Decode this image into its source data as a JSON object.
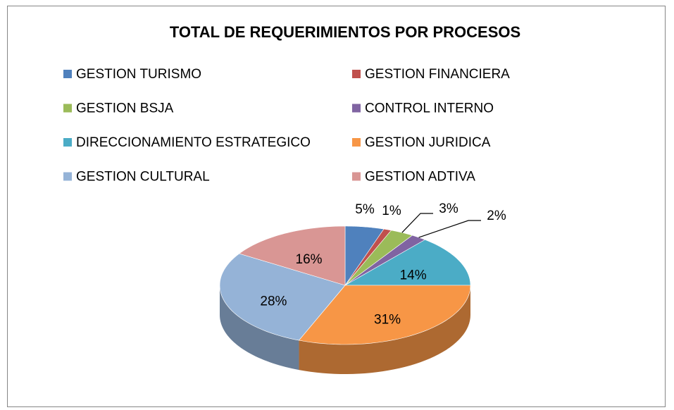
{
  "chart_data": {
    "type": "pie3d",
    "title": "TOTAL DE REQUERIMIENTOS POR PROCESOS",
    "categories": [
      "GESTION TURISMO",
      "GESTION FINANCIERA",
      "GESTION BSJA",
      "CONTROL INTERNO",
      "DIRECCIONAMIENTO ESTRATEGICO",
      "GESTION JURIDICA",
      "GESTION CULTURAL",
      "GESTION ADTIVA"
    ],
    "values": [
      5,
      1,
      3,
      2,
      14,
      31,
      28,
      16
    ],
    "value_labels": [
      "5%",
      "1%",
      "3%",
      "2%",
      "14%",
      "31%",
      "28%",
      "16%"
    ],
    "colors": [
      "#4f81bd",
      "#c0504d",
      "#9bbb59",
      "#8064a2",
      "#4bacc6",
      "#f79646",
      "#95b3d7",
      "#d99694"
    ],
    "legend": "top"
  }
}
